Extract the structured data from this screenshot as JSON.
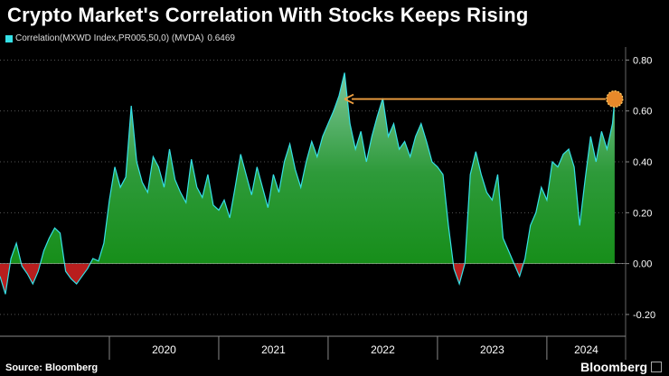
{
  "title": "Crypto Market's Correlation With Stocks Keeps Rising",
  "legend": {
    "label": "Correlation(MXWD Index,PR005,50,0) (MVDA)",
    "value": "0.6469",
    "color": "#35e0e6"
  },
  "source": "Source: Bloomberg",
  "brand": "Bloomberg",
  "chart_data": {
    "type": "area",
    "title": "Crypto Market's Correlation With Stocks Keeps Rising",
    "series": [
      {
        "name": "Correlation(MXWD Index,PR005,50,0) (MVDA)",
        "last_value": 0.6469,
        "x": [
          2019.0,
          2019.05,
          2019.1,
          2019.15,
          2019.2,
          2019.25,
          2019.3,
          2019.35,
          2019.4,
          2019.45,
          2019.5,
          2019.55,
          2019.6,
          2019.65,
          2019.7,
          2019.75,
          2019.8,
          2019.85,
          2019.9,
          2019.95,
          2020.0,
          2020.05,
          2020.1,
          2020.15,
          2020.2,
          2020.25,
          2020.3,
          2020.35,
          2020.4,
          2020.45,
          2020.5,
          2020.55,
          2020.6,
          2020.65,
          2020.7,
          2020.75,
          2020.8,
          2020.85,
          2020.9,
          2020.95,
          2021.0,
          2021.05,
          2021.1,
          2021.15,
          2021.2,
          2021.25,
          2021.3,
          2021.35,
          2021.4,
          2021.45,
          2021.5,
          2021.55,
          2021.6,
          2021.65,
          2021.7,
          2021.75,
          2021.8,
          2021.85,
          2021.9,
          2021.95,
          2022.0,
          2022.05,
          2022.1,
          2022.15,
          2022.2,
          2022.25,
          2022.3,
          2022.35,
          2022.4,
          2022.45,
          2022.5,
          2022.55,
          2022.6,
          2022.65,
          2022.7,
          2022.75,
          2022.8,
          2022.85,
          2022.9,
          2022.95,
          2023.0,
          2023.05,
          2023.1,
          2023.15,
          2023.2,
          2023.25,
          2023.3,
          2023.35,
          2023.4,
          2023.45,
          2023.5,
          2023.55,
          2023.6,
          2023.65,
          2023.7,
          2023.75,
          2023.8,
          2023.85,
          2023.9,
          2023.95,
          2024.0,
          2024.05,
          2024.1,
          2024.15,
          2024.2,
          2024.25,
          2024.3,
          2024.35,
          2024.4,
          2024.45,
          2024.5,
          2024.55,
          2024.6,
          2024.62
        ],
        "values": [
          -0.05,
          -0.12,
          0.02,
          0.08,
          -0.01,
          -0.04,
          -0.08,
          -0.03,
          0.05,
          0.1,
          0.14,
          0.12,
          -0.03,
          -0.06,
          -0.08,
          -0.05,
          -0.02,
          0.02,
          0.01,
          0.08,
          0.25,
          0.38,
          0.3,
          0.34,
          0.62,
          0.4,
          0.32,
          0.28,
          0.42,
          0.38,
          0.3,
          0.45,
          0.33,
          0.28,
          0.24,
          0.41,
          0.3,
          0.26,
          0.35,
          0.23,
          0.21,
          0.25,
          0.18,
          0.3,
          0.43,
          0.35,
          0.27,
          0.38,
          0.3,
          0.22,
          0.35,
          0.28,
          0.4,
          0.47,
          0.37,
          0.3,
          0.4,
          0.48,
          0.42,
          0.5,
          0.55,
          0.6,
          0.66,
          0.75,
          0.55,
          0.45,
          0.52,
          0.4,
          0.5,
          0.58,
          0.65,
          0.5,
          0.55,
          0.45,
          0.48,
          0.42,
          0.5,
          0.55,
          0.48,
          0.4,
          0.38,
          0.35,
          0.15,
          -0.02,
          -0.08,
          0.0,
          0.35,
          0.44,
          0.35,
          0.28,
          0.25,
          0.35,
          0.1,
          0.05,
          0.0,
          -0.05,
          0.02,
          0.15,
          0.2,
          0.3,
          0.25,
          0.4,
          0.38,
          0.43,
          0.45,
          0.38,
          0.15,
          0.33,
          0.5,
          0.4,
          0.52,
          0.45,
          0.55,
          0.6469
        ]
      }
    ],
    "x_tick_labels": [
      "2020",
      "2021",
      "2022",
      "2023",
      "2024"
    ],
    "xlim": [
      2019.0,
      2024.72
    ],
    "y_ticks": [
      -0.2,
      0.0,
      0.2,
      0.4,
      0.6,
      0.8
    ],
    "y_tick_labels": [
      "-0.20",
      "0.00",
      "0.20",
      "0.40",
      "0.60",
      "0.80"
    ],
    "ylim": [
      -0.25,
      0.83
    ],
    "annotation": {
      "type": "arrow",
      "from_x": 2024.62,
      "to_x": 2022.15,
      "y": 0.6469,
      "color": "#f0a040"
    },
    "grid": true,
    "xlabel": "",
    "ylabel": ""
  }
}
